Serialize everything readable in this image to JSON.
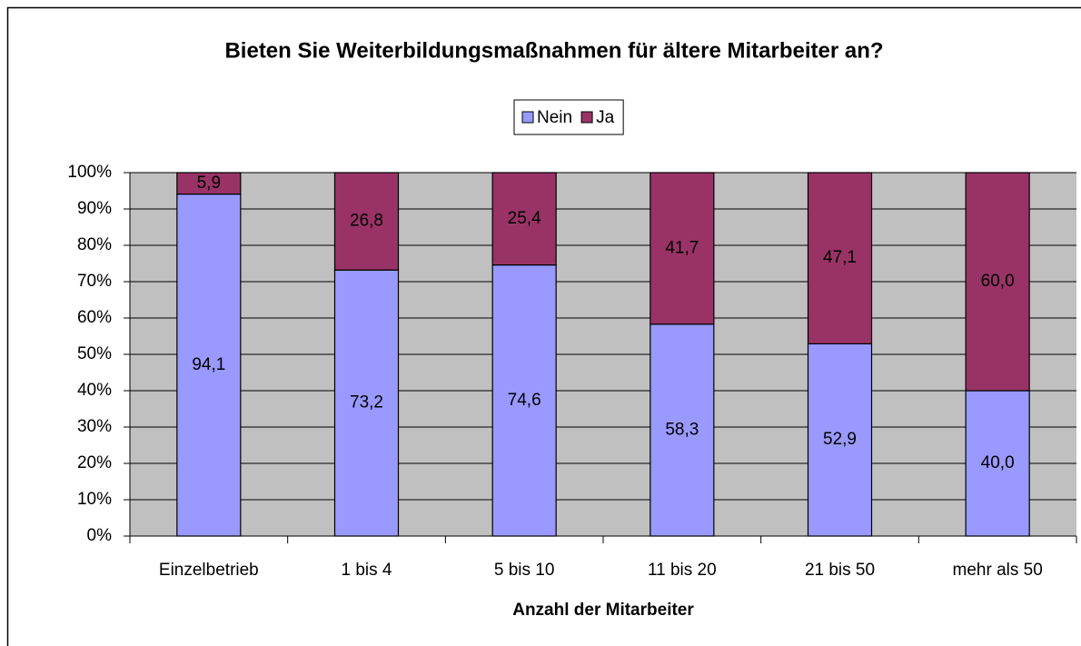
{
  "chart_data": {
    "type": "stacked_bar",
    "title": "Bieten Sie Weiterbildungsmaßnahmen für ältere Mitarbeiter an?",
    "x_label": "Anzahl der Mitarbeiter",
    "categories": [
      "Einzelbetrieb",
      "1 bis 4",
      "5 bis 10",
      "11 bis 20",
      "21 bis 50",
      "mehr als 50"
    ],
    "series": [
      {
        "name": "Nein",
        "color": "#9999ff",
        "values": [
          94.1,
          73.2,
          74.6,
          58.3,
          52.9,
          40.0
        ],
        "value_labels": [
          "94,1",
          "73,2",
          "74,6",
          "58,3",
          "52,9",
          "40,0"
        ]
      },
      {
        "name": "Ja",
        "color": "#993366",
        "values": [
          5.9,
          26.8,
          25.4,
          41.7,
          47.1,
          60.0
        ],
        "value_labels": [
          "5,9",
          "26,8",
          "25,4",
          "41,7",
          "47,1",
          "60,0"
        ]
      }
    ],
    "ylim": [
      0,
      100
    ],
    "yticks": [
      {
        "value": 0,
        "label": "0%"
      },
      {
        "value": 10,
        "label": "10%"
      },
      {
        "value": 20,
        "label": "20%"
      },
      {
        "value": 30,
        "label": "30%"
      },
      {
        "value": 40,
        "label": "40%"
      },
      {
        "value": 50,
        "label": "50%"
      },
      {
        "value": 60,
        "label": "60%"
      },
      {
        "value": 70,
        "label": "70%"
      },
      {
        "value": 80,
        "label": "80%"
      },
      {
        "value": 90,
        "label": "90%"
      },
      {
        "value": 100,
        "label": "100%"
      }
    ],
    "grid": true,
    "legend": "top"
  }
}
